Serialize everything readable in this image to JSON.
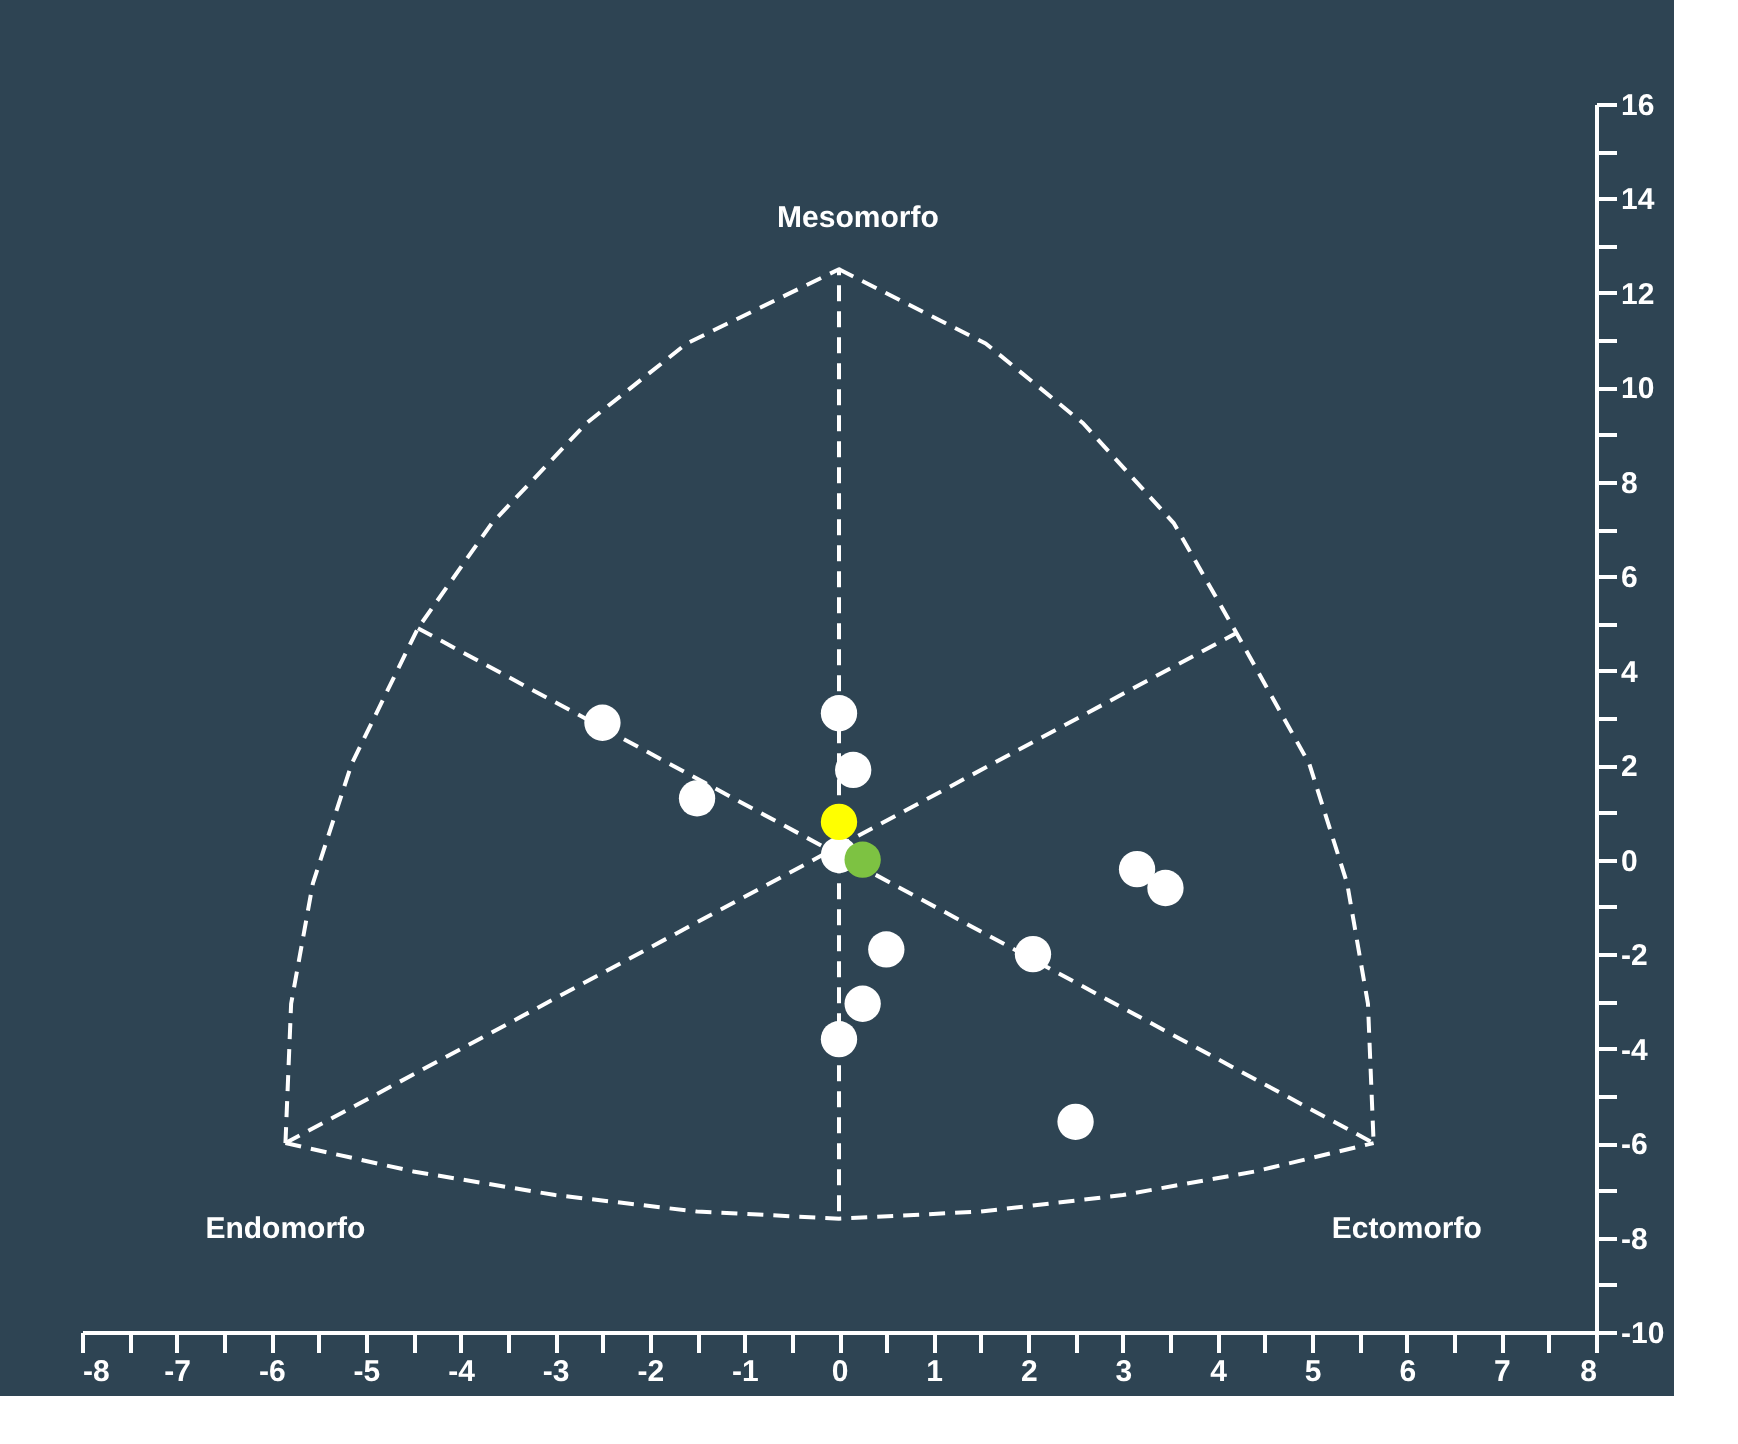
{
  "chart_data": {
    "type": "scatter",
    "xlim": [
      -8,
      8
    ],
    "xticks": [
      -8,
      {
        "value": -7.5,
        "label": null
      },
      -7,
      {
        "value": -6.5,
        "label": null
      },
      -6,
      {
        "value": -5.5,
        "label": null
      },
      -5,
      {
        "value": -4.5,
        "label": null
      },
      -4,
      {
        "value": -3.5,
        "label": null
      },
      -3,
      {
        "value": -2.5,
        "label": null
      },
      -2,
      {
        "value": -1.5,
        "label": null
      },
      -1,
      {
        "value": -0.5,
        "label": null
      },
      0,
      {
        "value": 0.5,
        "label": null
      },
      1,
      {
        "value": 1.5,
        "label": null
      },
      2,
      {
        "value": 2.5,
        "label": null
      },
      3,
      {
        "value": 3.5,
        "label": null
      },
      4,
      {
        "value": 4.5,
        "label": null
      },
      5,
      {
        "value": 5.5,
        "label": null
      },
      6,
      {
        "value": 6.5,
        "label": null
      },
      7,
      {
        "value": 7.5,
        "label": null
      },
      8
    ],
    "ylim": [
      -10,
      16
    ],
    "yticks": [
      -10,
      {
        "value": -9,
        "label": null
      },
      -8,
      {
        "value": -7,
        "label": null
      },
      -6,
      {
        "value": -5,
        "label": null
      },
      -4,
      {
        "value": -3,
        "label": null
      },
      -2,
      {
        "value": -1,
        "label": null
      },
      0,
      {
        "value": 1,
        "label": null
      },
      2,
      {
        "value": 3,
        "label": null
      },
      4,
      {
        "value": 5,
        "label": null
      },
      6,
      {
        "value": 7,
        "label": null
      },
      8,
      {
        "value": 9,
        "label": null
      },
      10,
      {
        "value": 11,
        "label": null
      },
      12,
      {
        "value": 13,
        "label": null
      },
      14,
      {
        "value": 15,
        "label": null
      },
      16
    ],
    "grid": false,
    "marker": "circle",
    "series": [
      {
        "type": "line",
        "color": "#ffffff",
        "line_style": "dashed",
        "marker": "none",
        "x": [
          -5.85,
          -5.79,
          -5.56,
          -5.15,
          -4.45,
          -3.67,
          -2.67,
          -1.61,
          0.0,
          0.0
        ],
        "values": [
          -6.0,
          -3.05,
          -0.5,
          2.03,
          4.9,
          7.12,
          9.24,
          10.93,
          12.5,
          -7.6
        ]
      },
      {
        "type": "line",
        "color": "#ffffff",
        "line_style": "dashed",
        "marker": "none",
        "x": [
          0.0,
          1.55,
          2.58,
          3.54,
          4.2,
          4.97,
          5.37,
          5.59,
          5.65
        ],
        "values": [
          12.5,
          10.93,
          9.24,
          7.12,
          4.8,
          2.03,
          -0.5,
          -3.05,
          -6.0
        ]
      },
      {
        "type": "line",
        "color": "#ffffff",
        "line_style": "dashed",
        "marker": "none",
        "x": [
          -5.85,
          -4.5,
          -3.0,
          -1.5,
          0.0,
          1.5,
          3.0,
          4.4,
          5.65
        ],
        "values": [
          -6.0,
          -6.6,
          -7.1,
          -7.45,
          -7.6,
          -7.45,
          -7.1,
          -6.6,
          -6.0
        ]
      },
      {
        "type": "line",
        "color": "#ffffff",
        "line_style": "dashed",
        "marker": "none",
        "x": [
          -4.45,
          5.65
        ],
        "values": [
          4.9,
          -6.0
        ]
      },
      {
        "type": "line",
        "color": "#ffffff",
        "line_style": "dashed",
        "marker": "none",
        "x": [
          -5.85,
          4.2
        ],
        "values": [
          -6.0,
          4.8
        ]
      },
      {
        "color": "#ffffff",
        "x": [
          -2.5,
          -1.5,
          0.0,
          0.15,
          0.0,
          3.15,
          3.45,
          0.5,
          0.25,
          0.0,
          2.05,
          2.5
        ],
        "values": [
          2.9,
          1.3,
          3.1,
          1.9,
          0.1,
          -0.2,
          -0.6,
          -1.9,
          -3.05,
          -3.8,
          -2.0,
          -5.55
        ]
      },
      {
        "color": "#ffff00",
        "x": [
          0.0
        ],
        "values": [
          0.8
        ]
      },
      {
        "color": "#7dc242",
        "x": [
          0.25
        ],
        "values": [
          0.0
        ]
      }
    ],
    "annotations": [
      "Mesomorfo",
      "Endomorfo",
      "Ectomorfo"
    ]
  }
}
